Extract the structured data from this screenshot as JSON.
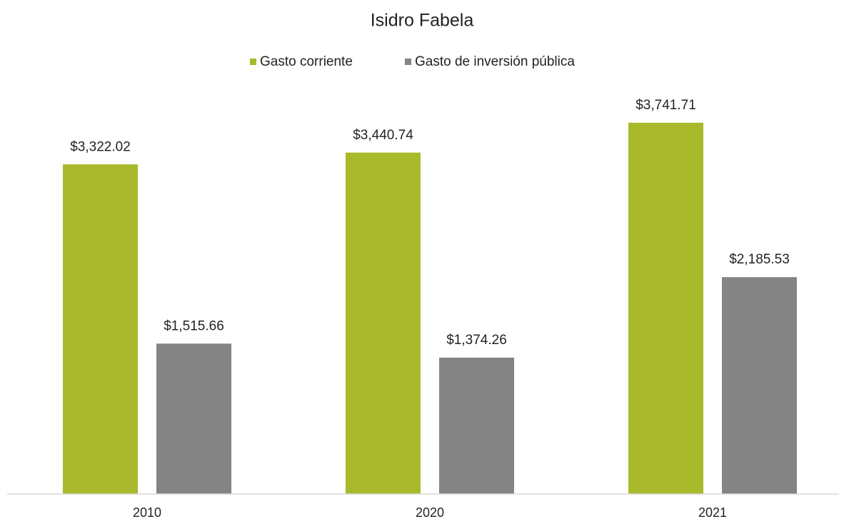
{
  "chart_data": {
    "type": "bar",
    "title": "Isidro Fabela",
    "categories": [
      "2010",
      "2020",
      "2021"
    ],
    "series": [
      {
        "name": "Gasto corriente",
        "color": "#a8b92b",
        "values": [
          3322.02,
          3440.74,
          3741.71
        ],
        "value_labels": [
          "$3,322.02",
          "$3,440.74",
          "$3,741.71"
        ]
      },
      {
        "name": "Gasto de inversión pública",
        "color": "#848484",
        "values": [
          1515.66,
          1374.26,
          2185.53
        ],
        "value_labels": [
          "$1,515.66",
          "$1,374.26",
          "$2,185.53"
        ]
      }
    ],
    "ylim": [
      0,
      4000
    ],
    "legend": "top"
  }
}
